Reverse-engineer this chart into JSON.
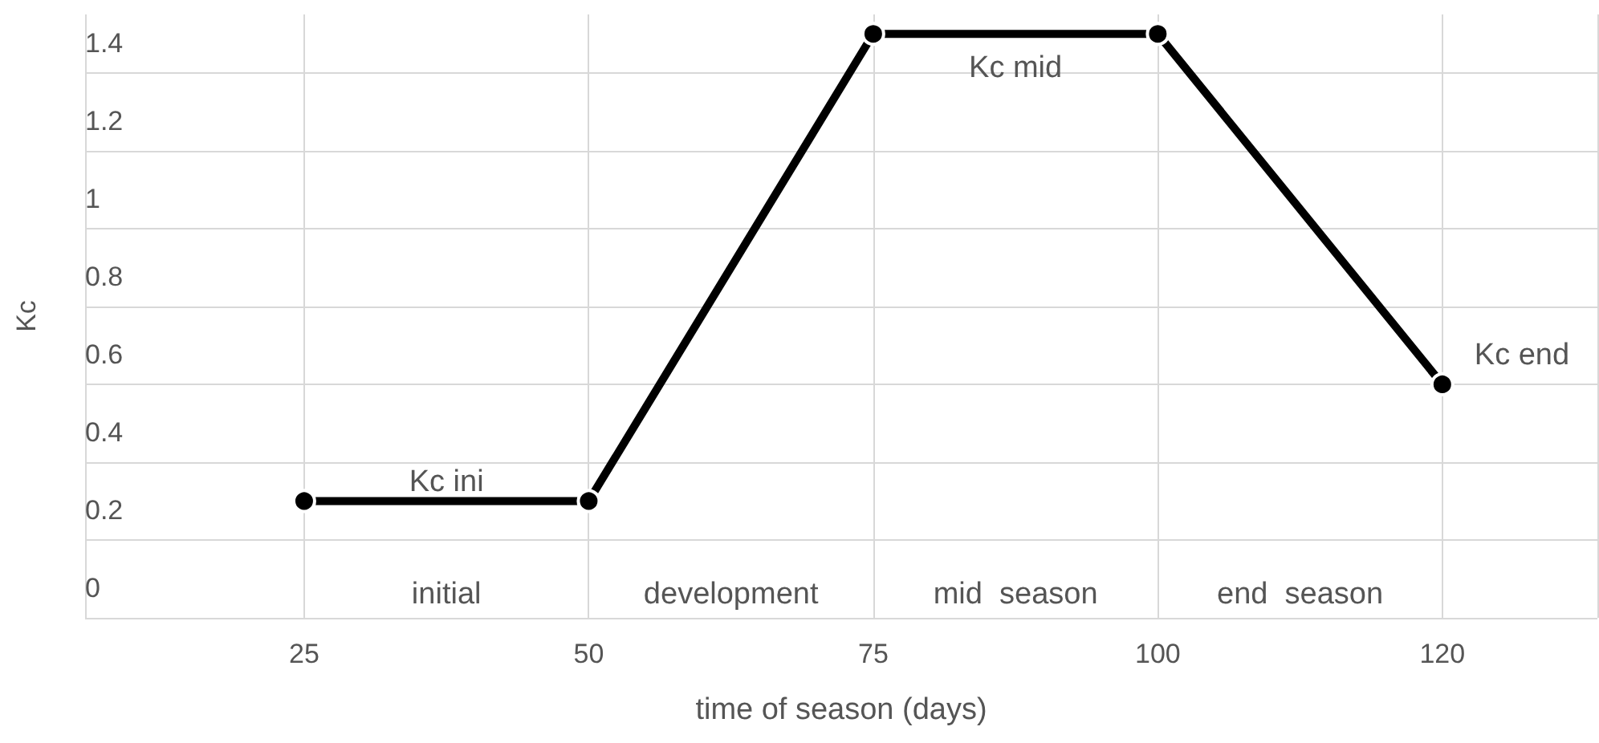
{
  "chart_data": {
    "type": "line",
    "xlabel": "time of season (days)",
    "ylabel": "Kc",
    "categories": [
      "25",
      "50",
      "75",
      "100",
      "120"
    ],
    "series": [
      {
        "color": "#000000",
        "values": [
          0.3,
          0.3,
          1.5,
          1.5,
          0.6
        ]
      }
    ],
    "ylim": [
      0,
      1.55
    ],
    "yticks": [
      0,
      0.2,
      0.4,
      0.6,
      0.8,
      1,
      1.2,
      1.4
    ],
    "grid": true,
    "marker": "circle",
    "line_style": "solid",
    "annotations": [
      "Kc ini",
      "Kc mid",
      "Kc end",
      "initial",
      "development",
      "mid  season",
      "end  season"
    ]
  }
}
